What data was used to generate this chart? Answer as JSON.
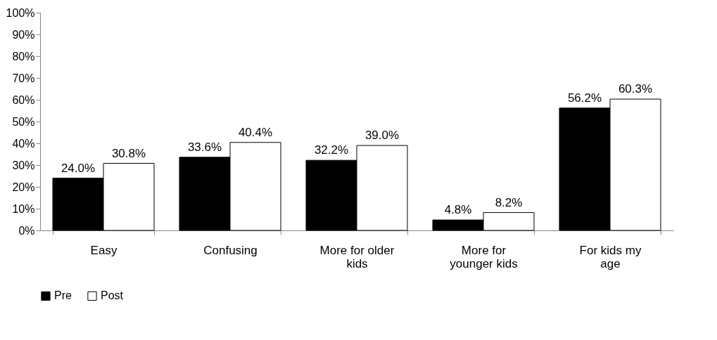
{
  "chart_data": {
    "type": "bar",
    "categories": [
      "Easy",
      "Confusing",
      "More for older kids",
      "More for younger kids",
      "For kids my age"
    ],
    "series": [
      {
        "name": "Pre",
        "color": "#000000",
        "values": [
          24.0,
          33.6,
          32.2,
          4.8,
          56.2
        ],
        "value_labels": [
          "24.0%",
          "33.6%",
          "32.2%",
          "4.8%",
          "56.2%"
        ]
      },
      {
        "name": "Post",
        "color": "#ffffff",
        "values": [
          30.8,
          40.4,
          39.0,
          8.2,
          60.3
        ],
        "value_labels": [
          "30.8%",
          "40.4%",
          "39.0%",
          "8.2%",
          "60.3%"
        ]
      }
    ],
    "ylim": [
      0,
      100
    ],
    "yticks": [
      {
        "value": 0,
        "label": "0%"
      },
      {
        "value": 10,
        "label": "10%"
      },
      {
        "value": 20,
        "label": "20%"
      },
      {
        "value": 30,
        "label": "30%"
      },
      {
        "value": 40,
        "label": "40%"
      },
      {
        "value": 50,
        "label": "50%"
      },
      {
        "value": 60,
        "label": "60%"
      },
      {
        "value": 70,
        "label": "70%"
      },
      {
        "value": 80,
        "label": "80%"
      },
      {
        "value": 90,
        "label": "90%"
      },
      {
        "value": 100,
        "label": "100%"
      }
    ],
    "grid": false,
    "legend": "bottom"
  }
}
